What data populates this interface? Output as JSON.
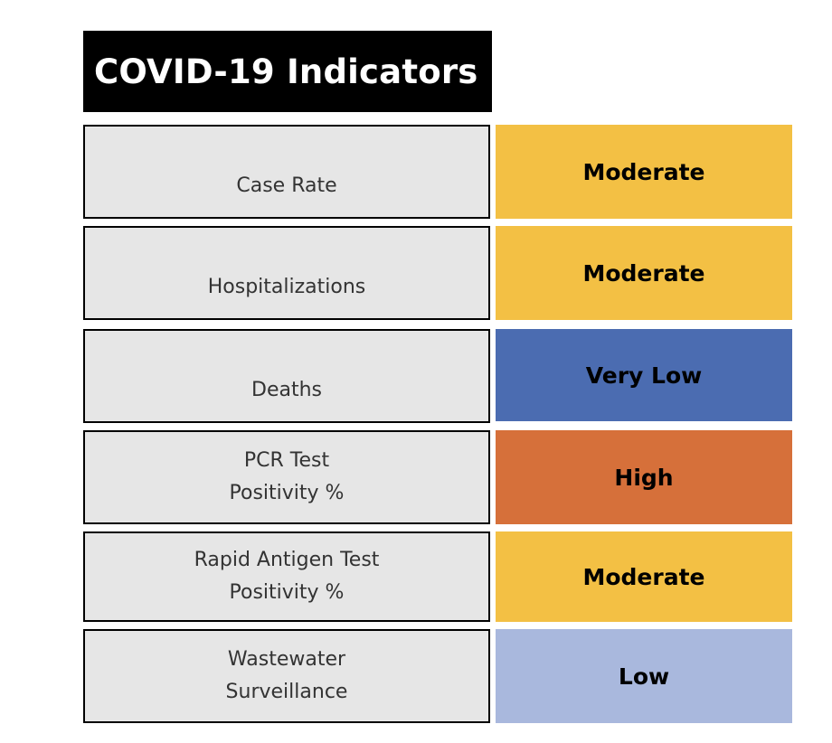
{
  "title": "COVID-19 Indicators",
  "colors": {
    "moderate": "#f3c044",
    "very_low": "#4b6cb1",
    "high": "#d6703a",
    "low": "#a9b8dd"
  },
  "indicators": [
    {
      "label": "Case Rate",
      "status": "Moderate",
      "color": "#f3c044"
    },
    {
      "label": "Hospitalizations",
      "status": "Moderate",
      "color": "#f3c044"
    },
    {
      "label": "Deaths",
      "status": "Very Low",
      "color": "#4b6cb1"
    },
    {
      "label": "PCR Test\nPositivity %",
      "status": "High",
      "color": "#d6703a"
    },
    {
      "label": "Rapid Antigen Test\nPositivity %",
      "status": "Moderate",
      "color": "#f3c044"
    },
    {
      "label": "Wastewater\nSurveillance",
      "status": "Low",
      "color": "#a9b8dd"
    }
  ]
}
